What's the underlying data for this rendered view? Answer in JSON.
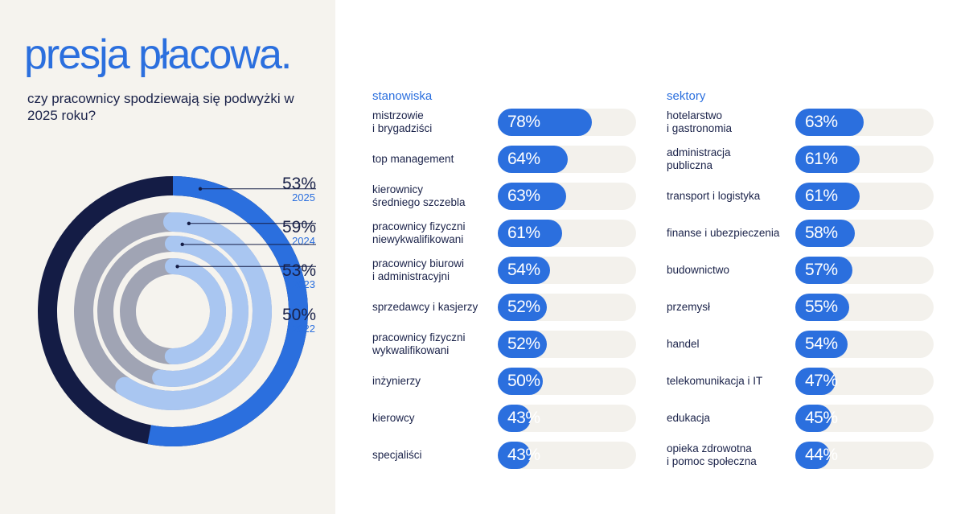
{
  "title": "presja płacowa.",
  "subtitle": "czy pracownicy spodziewają się podwyżki w 2025 roku?",
  "colors": {
    "accent": "#2b6fde",
    "navy": "#141c45",
    "grey": "#a0a4b4",
    "light_blue": "#a9c6f1",
    "track": "#f3f1ec",
    "left_bg": "#f5f3ee"
  },
  "chart_data": [
    {
      "type": "radial-bar",
      "series": [
        {
          "year": "2025",
          "label": "53%",
          "value": 53
        },
        {
          "year": "2024",
          "label": "59%",
          "value": 59
        },
        {
          "year": "2023",
          "label": "53%",
          "value": 53
        },
        {
          "year": "2022",
          "label": "50%",
          "value": 50
        }
      ]
    },
    {
      "type": "bar",
      "title": "stanowiska",
      "categories": [
        "mistrzowie\ni brygadziści",
        "top management",
        "kierownicy\nśredniego szczebla",
        "pracownicy fizyczni\nniewykwalifikowani",
        "pracownicy biurowi\ni administracyjni",
        "sprzedawcy i kasjerzy",
        "pracownicy fizyczni\nwykwalifikowani",
        "inżynierzy",
        "kierowcy",
        "specjaliści"
      ],
      "values": [
        78,
        64,
        63,
        61,
        54,
        52,
        52,
        50,
        43,
        43
      ],
      "labels": [
        "78%",
        "64%",
        "63%",
        "61%",
        "54%",
        "52%",
        "52%",
        "50%",
        "43%",
        "43%"
      ],
      "ylim": [
        0,
        100
      ]
    },
    {
      "type": "bar",
      "title": "sektory",
      "categories": [
        "hotelarstwo\ni gastronomia",
        "administracja\npubliczna",
        "transport i logistyka",
        "finanse i ubezpieczenia",
        "budownictwo",
        "przemysł",
        "handel",
        "telekomunikacja i IT",
        "edukacja",
        "opieka zdrowotna\ni pomoc społeczna"
      ],
      "values": [
        63,
        61,
        61,
        58,
        57,
        55,
        54,
        47,
        45,
        44
      ],
      "labels": [
        "63%",
        "61%",
        "61%",
        "58%",
        "57%",
        "55%",
        "54%",
        "47%",
        "45%",
        "44%"
      ],
      "ylim": [
        0,
        100
      ]
    }
  ]
}
